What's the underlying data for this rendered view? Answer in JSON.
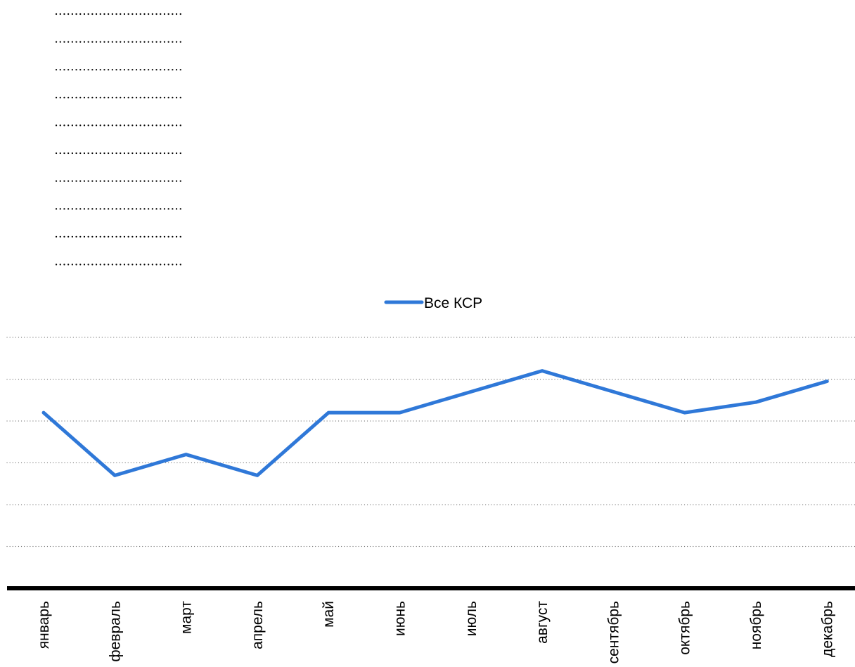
{
  "chart_data": {
    "type": "line",
    "title": "",
    "xlabel": "",
    "ylabel": "",
    "categories": [
      "январь",
      "февраль",
      "март",
      "апрель",
      "май",
      "июнь",
      "июль",
      "август",
      "сентябрь",
      "октябрь",
      "ноябрь",
      "декабрь"
    ],
    "series": [
      {
        "name": "Все КСР",
        "color": "#2f78d8",
        "values": [
          4.2,
          2.7,
          3.2,
          2.7,
          4.2,
          4.2,
          4.7,
          5.2,
          4.7,
          4.2,
          4.45,
          4.95
        ]
      }
    ],
    "ylim": [
      0,
      6
    ],
    "y_tick_labels_visible": false,
    "grid": true,
    "grid_style": "dotted",
    "legend_position": "top-center"
  }
}
